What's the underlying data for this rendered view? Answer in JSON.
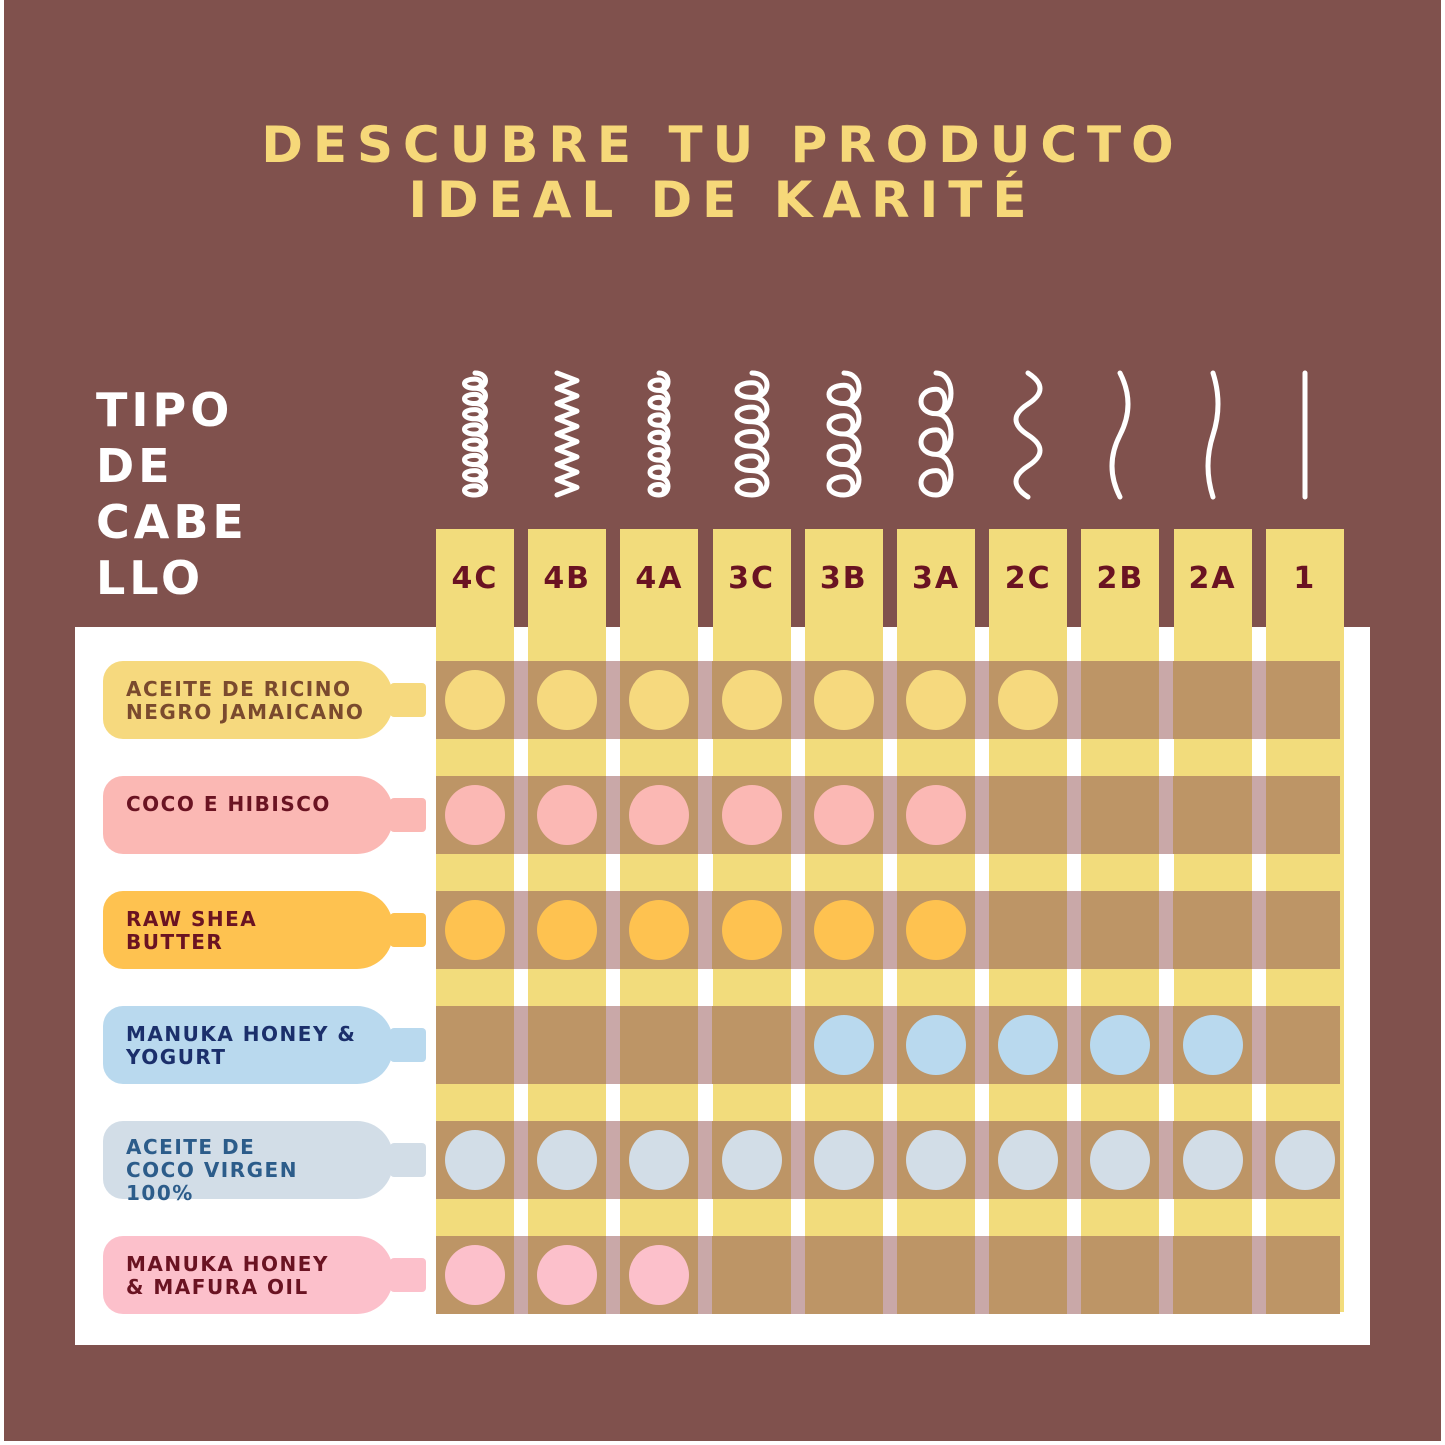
{
  "title": {
    "line1": "DESCUBRE TU PRODUCTO",
    "line2": "IDEAL DE KARITÉ"
  },
  "hair_type_heading": [
    "TIPO",
    "DE",
    "CABE",
    "LLO"
  ],
  "hair_types": [
    "4C",
    "4B",
    "4A",
    "3C",
    "3B",
    "3A",
    "2C",
    "2B",
    "2A",
    "1"
  ],
  "hair_icons": [
    "tight-coil-icon",
    "zigzag-coil-icon",
    "small-coil-icon",
    "coil-icon",
    "loose-coil-icon",
    "curl-icon",
    "s-wave-icon",
    "wave-icon",
    "slight-wave-icon",
    "straight-line-icon"
  ],
  "products": [
    {
      "label": "ACEITE DE RICINO\nNEGRO JAMAICANO",
      "color": "#f6d97e",
      "text_color": "#7a4a2e",
      "suitable": [
        "4C",
        "4B",
        "4A",
        "3C",
        "3B",
        "3A",
        "2C"
      ]
    },
    {
      "label": "COCO E HIBISCO",
      "color": "#fbb8b4",
      "text_color": "#6a1322",
      "suitable": [
        "4C",
        "4B",
        "4A",
        "3C",
        "3B",
        "3A"
      ]
    },
    {
      "label": "RAW SHEA\nBUTTER",
      "color": "#fec250",
      "text_color": "#6a1322",
      "suitable": [
        "4C",
        "4B",
        "4A",
        "3C",
        "3B",
        "3A"
      ]
    },
    {
      "label": "MANUKA HONEY &\nYOGURT",
      "color": "#b9d9ee",
      "text_color": "#1b2f6b",
      "suitable": [
        "3B",
        "3A",
        "2C",
        "2B",
        "2A"
      ]
    },
    {
      "label": "ACEITE DE\nCOCO VIRGEN\n100%",
      "color": "#d2dde7",
      "text_color": "#2c5c8a",
      "suitable": [
        "4C",
        "4B",
        "4A",
        "3C",
        "3B",
        "3A",
        "2C",
        "2B",
        "2A",
        "1"
      ]
    },
    {
      "label": "MANUKA HONEY\n& MAFURA OIL",
      "color": "#fcc0cb",
      "text_color": "#6a1322",
      "suitable": [
        "4C",
        "4B",
        "4A"
      ]
    }
  ],
  "colors": {
    "background": "#80514d",
    "title": "#f6d879",
    "column": "#f2dc7c",
    "row_band": "#bd9566",
    "column_label": "#6a1322",
    "panel": "#ffffff"
  }
}
